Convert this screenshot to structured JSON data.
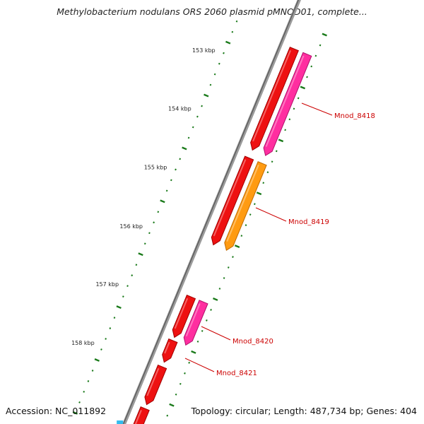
{
  "title": "Methylobacterium nodulans ORS 2060 plasmid pMNOD01, complete...",
  "footer": {
    "accession": "Accession: NC_011892",
    "summary": "Topology: circular; Length: 487,734 bp; Genes: 404"
  },
  "colors": {
    "backbone": "#8a8a8a",
    "forward_cds": "#ee1111",
    "pink_cds": "#ff2ea0",
    "orange_cds": "#ff9b12",
    "tick": "#1a7a1a",
    "label": "#cc0000",
    "blue_feature": "#33bbee"
  },
  "kbp_labels": [
    "153 kbp",
    "154 kbp",
    "155 kbp",
    "156 kbp",
    "157 kbp",
    "158 kbp"
  ],
  "gene_labels": [
    "Mnod_8418",
    "Mnod_8419",
    "Mnod_8420",
    "Mnod_8421"
  ]
}
